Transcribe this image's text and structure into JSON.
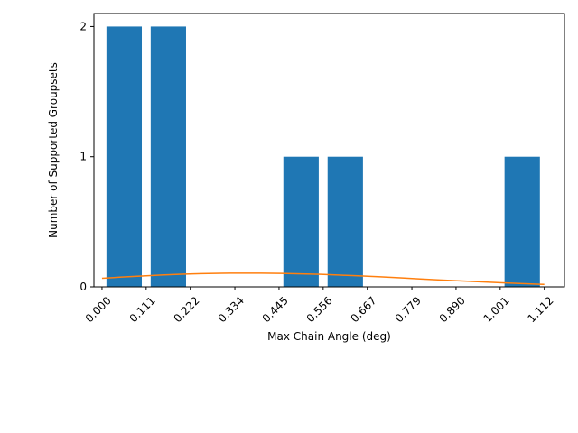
{
  "chart_data": {
    "type": "bar",
    "xlabel": "Max Chain Angle (deg)",
    "ylabel": "Number of Supported Groupsets",
    "xlim": [
      -0.0203,
      1.1626
    ],
    "ylim": [
      0,
      2.1
    ],
    "x_ticks": [
      0.0,
      0.111,
      0.222,
      0.334,
      0.445,
      0.556,
      0.667,
      0.779,
      0.89,
      1.001,
      1.112
    ],
    "x_tick_labels": [
      "0.000",
      "0.111",
      "0.222",
      "0.334",
      "0.445",
      "0.556",
      "0.667",
      "0.779",
      "0.890",
      "1.001",
      "1.112"
    ],
    "y_ticks": [
      0,
      1,
      2
    ],
    "y_tick_labels": [
      "0",
      "1",
      "2"
    ],
    "bar_width": 0.0889,
    "bars": [
      {
        "x": 0.0556,
        "value": 2
      },
      {
        "x": 0.1668,
        "value": 2
      },
      {
        "x": 0.5004,
        "value": 1
      },
      {
        "x": 0.6116,
        "value": 1
      },
      {
        "x": 1.0564,
        "value": 1
      }
    ],
    "bar_color": "#1f77b4",
    "curve": {
      "type": "line",
      "color": "#ff7f0e",
      "points": [
        [
          0.0,
          0.066
        ],
        [
          0.05,
          0.075
        ],
        [
          0.1,
          0.083
        ],
        [
          0.15,
          0.091
        ],
        [
          0.2,
          0.097
        ],
        [
          0.25,
          0.101
        ],
        [
          0.3,
          0.104
        ],
        [
          0.35,
          0.105
        ],
        [
          0.4,
          0.105
        ],
        [
          0.45,
          0.103
        ],
        [
          0.5,
          0.1
        ],
        [
          0.55,
          0.096
        ],
        [
          0.6,
          0.09
        ],
        [
          0.65,
          0.084
        ],
        [
          0.7,
          0.077
        ],
        [
          0.75,
          0.069
        ],
        [
          0.8,
          0.061
        ],
        [
          0.85,
          0.053
        ],
        [
          0.9,
          0.046
        ],
        [
          0.95,
          0.039
        ],
        [
          1.0,
          0.032
        ],
        [
          1.05,
          0.026
        ],
        [
          1.1,
          0.02
        ],
        [
          1.112,
          0.019
        ]
      ]
    },
    "grid": false,
    "legend": "none"
  }
}
